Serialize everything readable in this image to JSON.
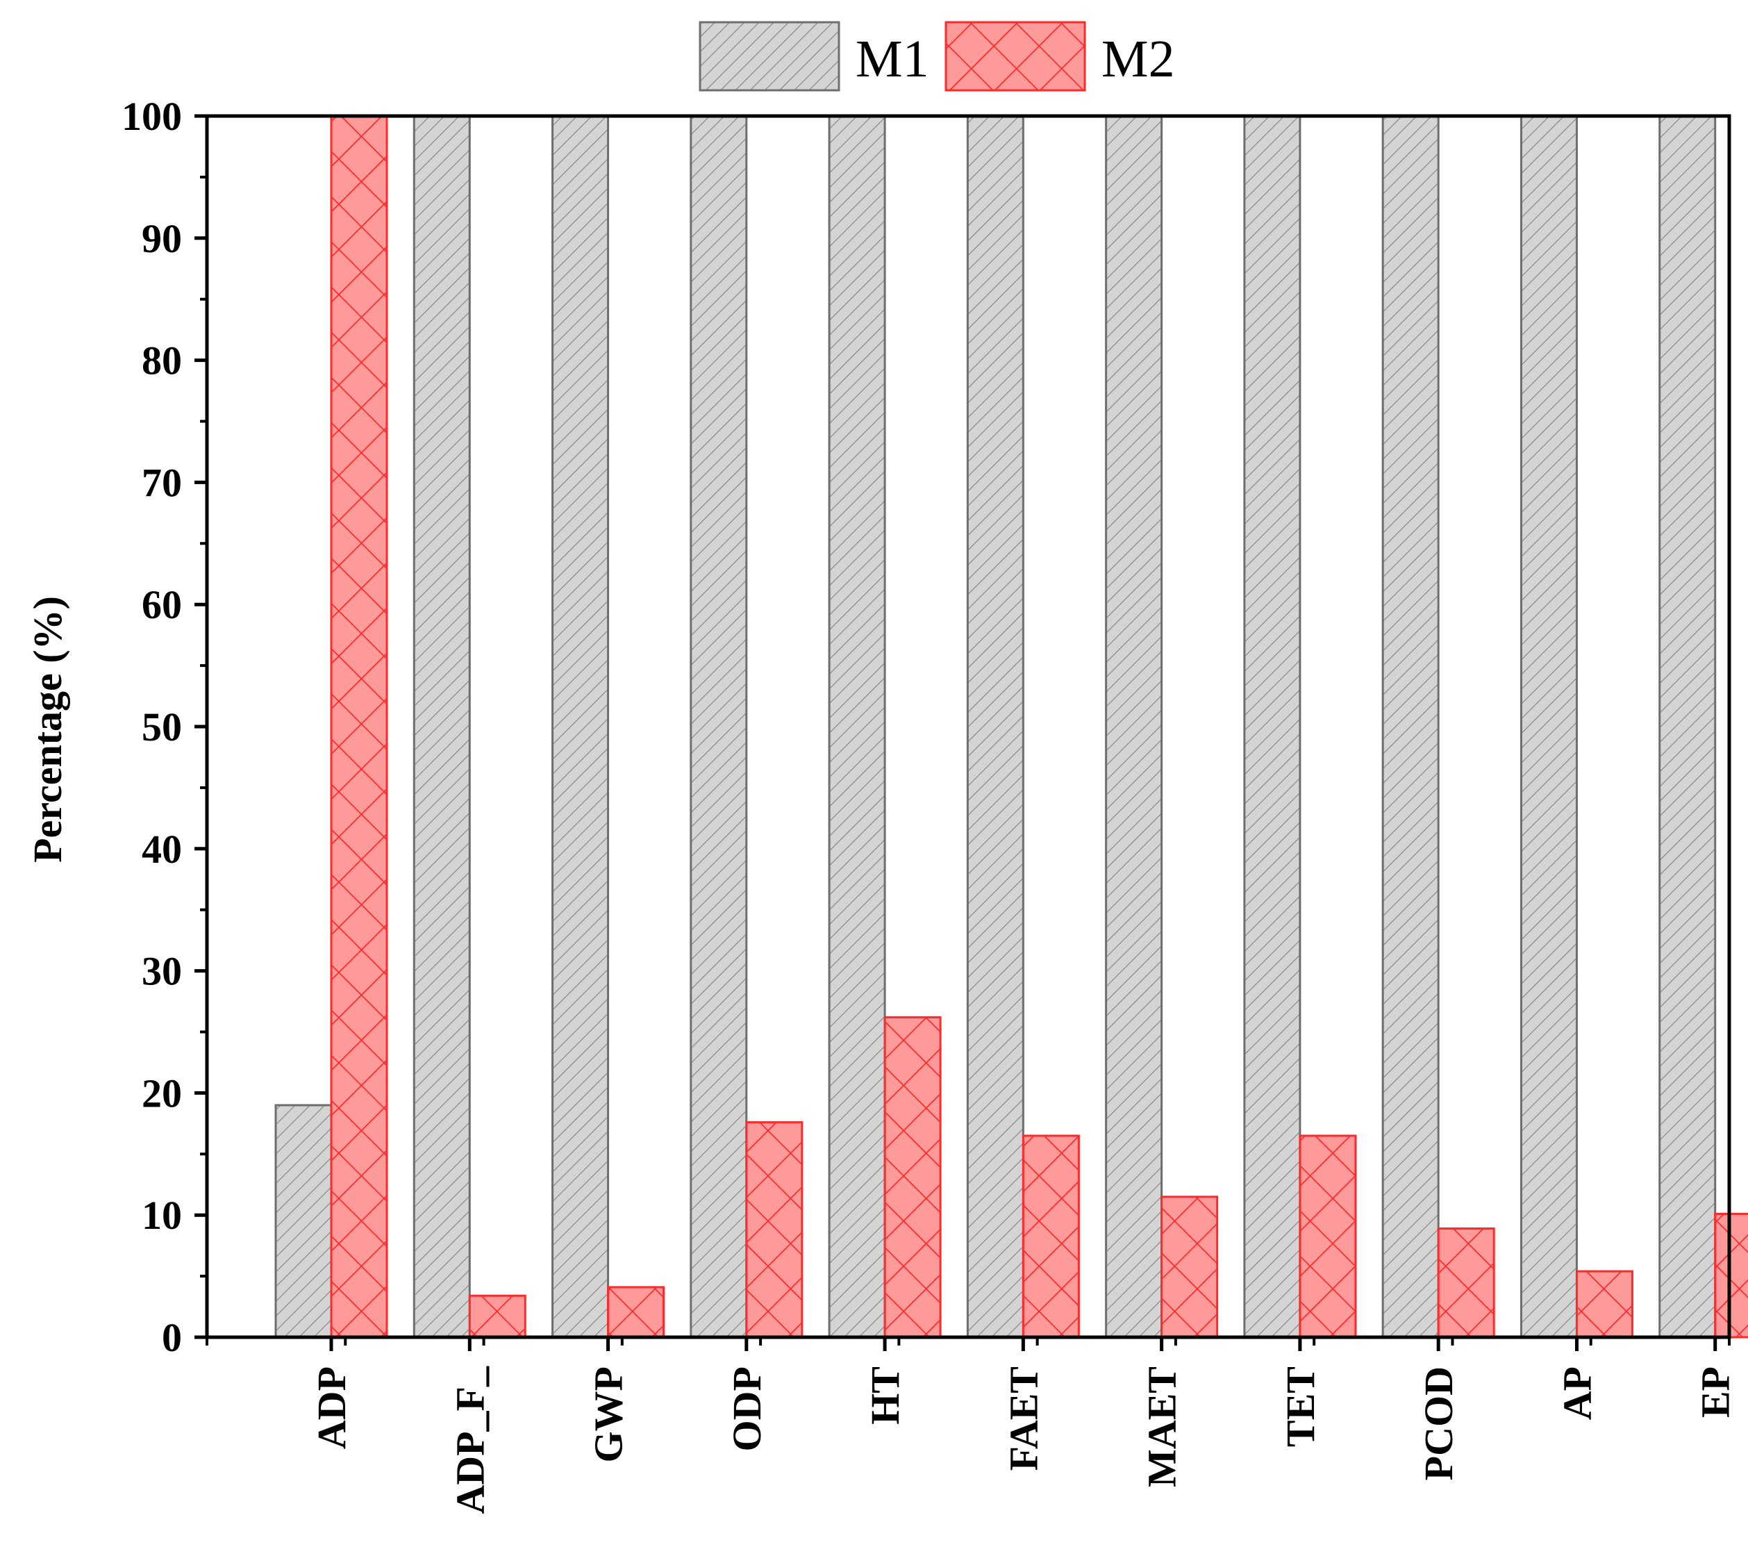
{
  "chart_data": {
    "type": "bar",
    "ylabel": "Percentage (%)",
    "xlabel": "",
    "ylim": [
      0,
      100
    ],
    "yticks": [
      "0",
      "10",
      "20",
      "30",
      "40",
      "50",
      "60",
      "70",
      "80",
      "90",
      "100"
    ],
    "categories": [
      "ADP",
      "ADP_F_",
      "GWP",
      "ODP",
      "HT",
      "FAET",
      "MAET",
      "TET",
      "PCOD",
      "AP",
      "EP"
    ],
    "series": [
      {
        "name": "M1",
        "values": [
          19,
          100,
          100,
          100,
          100,
          100,
          100,
          100,
          100,
          100,
          100
        ],
        "color": "#d4d4d4",
        "edge": "#6e6e6e",
        "pattern": "diagonal-hatch"
      },
      {
        "name": "M2",
        "values": [
          100,
          3.4,
          4.1,
          17.6,
          26.2,
          16.5,
          11.5,
          16.5,
          8.9,
          5.4,
          10.1
        ],
        "color": "#ff9a9a",
        "edge": "#ff2a2a",
        "pattern": "cross-hatch"
      }
    ],
    "legend": "top-center",
    "grid": false
  }
}
